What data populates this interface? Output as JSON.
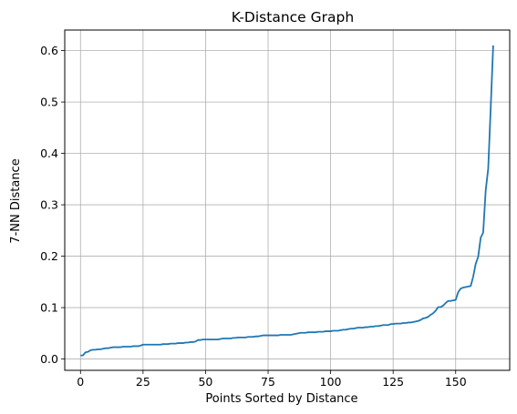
{
  "chart_data": {
    "type": "line",
    "title": "K-Distance Graph",
    "xlabel": "Points Sorted by Distance",
    "ylabel": "7-NN Distance",
    "xlim": [
      -6.3,
      171.6
    ],
    "ylim": [
      -0.022,
      0.64
    ],
    "xticks": [
      0,
      25,
      50,
      75,
      100,
      125,
      150
    ],
    "yticks": [
      0.0,
      0.1,
      0.2,
      0.3,
      0.4,
      0.5,
      0.6
    ],
    "xtick_labels": [
      "0",
      "25",
      "50",
      "75",
      "100",
      "125",
      "150"
    ],
    "ytick_labels": [
      "0.0",
      "0.1",
      "0.2",
      "0.3",
      "0.4",
      "0.5",
      "0.6"
    ],
    "grid": true,
    "line_color": "#1f77b4",
    "series": [
      {
        "x": [
          0,
          1,
          2,
          3,
          4,
          5,
          6,
          7,
          8,
          9,
          10,
          11,
          12,
          13,
          14,
          15,
          16,
          17,
          18,
          19,
          20,
          21,
          22,
          23,
          24,
          25,
          26,
          27,
          28,
          29,
          30,
          31,
          32,
          33,
          34,
          35,
          36,
          37,
          38,
          39,
          40,
          41,
          42,
          43,
          44,
          45,
          46,
          47,
          48,
          49,
          50,
          51,
          52,
          53,
          54,
          55,
          56,
          57,
          58,
          59,
          60,
          61,
          62,
          63,
          64,
          65,
          66,
          67,
          68,
          69,
          70,
          71,
          72,
          73,
          74,
          75,
          76,
          77,
          78,
          79,
          80,
          81,
          82,
          83,
          84,
          85,
          86,
          87,
          88,
          89,
          90,
          91,
          92,
          93,
          94,
          95,
          96,
          97,
          98,
          99,
          100,
          101,
          102,
          103,
          104,
          105,
          106,
          107,
          108,
          109,
          110,
          111,
          112,
          113,
          114,
          115,
          116,
          117,
          118,
          119,
          120,
          121,
          122,
          123,
          124,
          125,
          126,
          127,
          128,
          129,
          130,
          131,
          132,
          133,
          134,
          135,
          136,
          137,
          138,
          139,
          140,
          141,
          142,
          143,
          144,
          145,
          146,
          147,
          148,
          149,
          150,
          151,
          152,
          153,
          154,
          155,
          156,
          157,
          158,
          159,
          160,
          161,
          162,
          163,
          164,
          165
        ],
        "y": [
          0.007,
          0.007,
          0.013,
          0.014,
          0.017,
          0.018,
          0.018,
          0.019,
          0.019,
          0.02,
          0.021,
          0.021,
          0.022,
          0.023,
          0.023,
          0.023,
          0.023,
          0.024,
          0.024,
          0.024,
          0.024,
          0.025,
          0.025,
          0.025,
          0.026,
          0.028,
          0.028,
          0.028,
          0.028,
          0.028,
          0.028,
          0.028,
          0.028,
          0.029,
          0.029,
          0.029,
          0.03,
          0.03,
          0.03,
          0.031,
          0.031,
          0.031,
          0.032,
          0.032,
          0.033,
          0.033,
          0.034,
          0.037,
          0.037,
          0.038,
          0.038,
          0.038,
          0.038,
          0.038,
          0.038,
          0.038,
          0.039,
          0.04,
          0.04,
          0.04,
          0.04,
          0.041,
          0.041,
          0.042,
          0.042,
          0.042,
          0.042,
          0.043,
          0.043,
          0.043,
          0.044,
          0.044,
          0.045,
          0.046,
          0.046,
          0.046,
          0.046,
          0.046,
          0.046,
          0.046,
          0.047,
          0.047,
          0.047,
          0.047,
          0.047,
          0.048,
          0.049,
          0.05,
          0.051,
          0.051,
          0.051,
          0.052,
          0.052,
          0.052,
          0.052,
          0.053,
          0.053,
          0.053,
          0.054,
          0.054,
          0.054,
          0.055,
          0.055,
          0.055,
          0.056,
          0.057,
          0.057,
          0.058,
          0.059,
          0.059,
          0.06,
          0.061,
          0.061,
          0.061,
          0.062,
          0.062,
          0.063,
          0.063,
          0.064,
          0.064,
          0.065,
          0.066,
          0.066,
          0.066,
          0.068,
          0.068,
          0.069,
          0.069,
          0.069,
          0.07,
          0.07,
          0.071,
          0.071,
          0.072,
          0.073,
          0.074,
          0.076,
          0.079,
          0.08,
          0.082,
          0.086,
          0.089,
          0.094,
          0.101,
          0.101,
          0.104,
          0.109,
          0.113,
          0.113,
          0.114,
          0.115,
          0.13,
          0.137,
          0.139,
          0.14,
          0.141,
          0.142,
          0.16,
          0.185,
          0.199,
          0.236,
          0.246,
          0.328,
          0.37,
          0.488,
          0.61
        ]
      }
    ]
  }
}
